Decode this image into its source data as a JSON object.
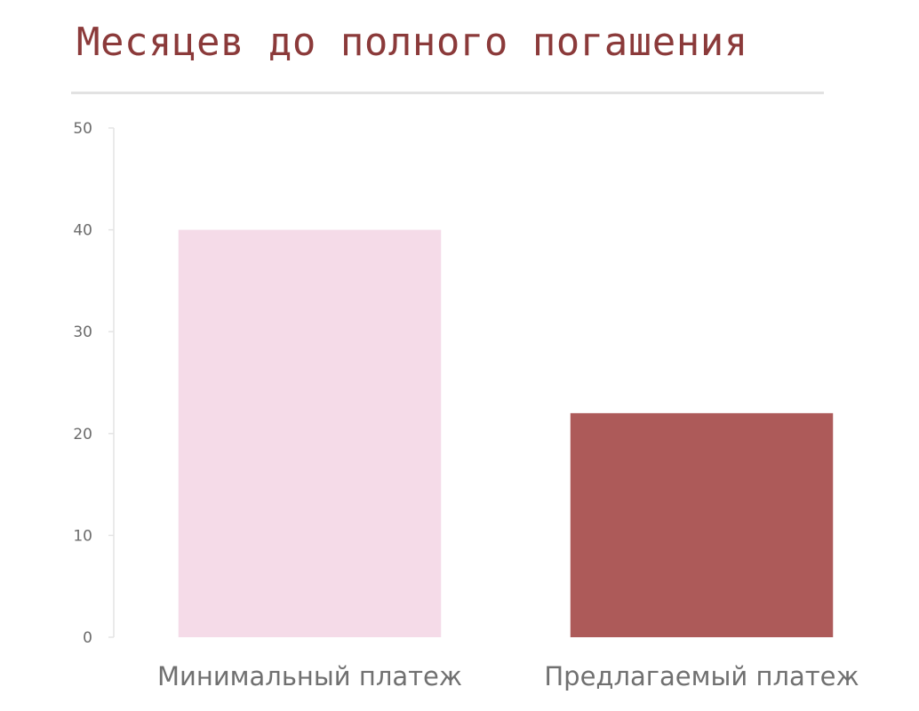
{
  "chart_data": {
    "type": "bar",
    "title": "Месяцев до полного погашения",
    "categories": [
      "Минимальный платеж",
      "Предлагаемый платеж"
    ],
    "values": [
      40,
      22
    ],
    "colors": [
      "#f5dbe8",
      "#ad5a59"
    ],
    "ylim": [
      0,
      50
    ],
    "yticks": [
      "0",
      "10",
      "20",
      "30",
      "40",
      "50"
    ],
    "grid": false,
    "legend": "none"
  }
}
